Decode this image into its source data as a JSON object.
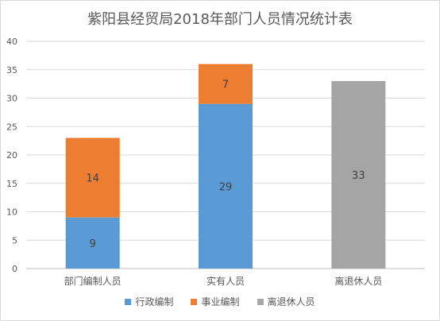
{
  "chart_data": {
    "type": "bar",
    "stacked": true,
    "title": "紫阳县经贸局2018年部门人员情况统计表",
    "categories": [
      "部门编制人员",
      "实有人员",
      "离退休人员"
    ],
    "series": [
      {
        "name": "行政编制",
        "color": "#5b9bd5",
        "values": [
          9,
          29,
          null
        ]
      },
      {
        "name": "事业编制",
        "color": "#ed7d31",
        "values": [
          14,
          7,
          null
        ]
      },
      {
        "name": "离退休人员",
        "color": "#a5a5a5",
        "values": [
          null,
          null,
          33
        ]
      }
    ],
    "data_labels": [
      [
        "9",
        "29",
        ""
      ],
      [
        "14",
        "7",
        ""
      ],
      [
        "",
        "",
        "33"
      ]
    ],
    "ylim": [
      0,
      40
    ],
    "yticks": [
      "0",
      "5",
      "10",
      "15",
      "20",
      "25",
      "30",
      "35",
      "40"
    ],
    "xlabel": "",
    "ylabel": "",
    "grid": true,
    "legend_position": "bottom"
  }
}
